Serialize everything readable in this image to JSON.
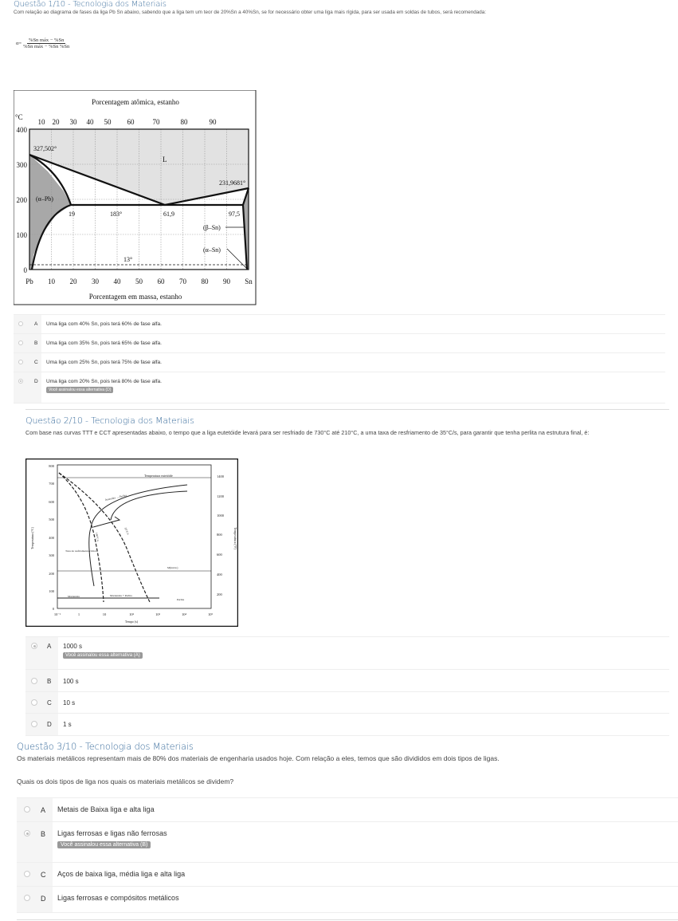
{
  "q1": {
    "title": "Questão 1/10 - Tecnologia dos Materiais",
    "text": "Com relação ao diagrama de fases da liga Pb Sn abaixo, sabendo que a liga tem um teor de 20%Sn a 40%Sn,  se for necessário obter uma liga mais rígida, para ser usada em soldas de tubos, será recomendada:",
    "formula": {
      "lhs": "α=",
      "num": "%Sn máx − %Sn",
      "den": "%Sn máx − %Sn %Sn"
    },
    "diagram": {
      "top_title": "Porcentagem atômica, estanho",
      "unit": "°C",
      "top_ticks": [
        "10",
        "20",
        "30",
        "40",
        "50",
        "60",
        "70",
        "80",
        "90"
      ],
      "y_ticks": [
        "400",
        "300",
        "200",
        "100",
        "0"
      ],
      "x_ticks": [
        "Pb",
        "10",
        "20",
        "30",
        "40",
        "50",
        "60",
        "70",
        "80",
        "90",
        "Sn"
      ],
      "x_title": "Porcentagem em massa, estanho",
      "labels": {
        "pb_melt": "327,502°",
        "L": "L",
        "sn_melt": "231,9681°",
        "alpha_pb": "(α–Pb)",
        "c19": "19",
        "t183": "183°",
        "c619": "61,9",
        "c975": "97,5",
        "beta_sn": "(β–Sn)",
        "alpha_sn": "(α–Sn)",
        "t13": "13°"
      }
    },
    "options": [
      {
        "letter": "A",
        "text": "Uma liga com 40% Sn, pois terá 60% de fase alfa.",
        "selected": false
      },
      {
        "letter": "B",
        "text": "Uma liga com 35% Sn, pois terá 65% de fase alfa.",
        "selected": false
      },
      {
        "letter": "C",
        "text": "Uma liga com 25% Sn, pois terá 75% de fase alfa.",
        "selected": false
      },
      {
        "letter": "D",
        "text": "Uma liga com 20% Sn, pois terá 80% de fase alfa.",
        "selected": true,
        "badge": "Você assinalou essa alternativa (D)"
      }
    ]
  },
  "q2": {
    "title": "Questão 2/10 - Tecnologia dos Materiais",
    "text": "Com base nas curvas TTT e CCT apresentadas abaixo, o tempo que a liga eutetóide levará para ser resfriado de 730°C até 210°C, a uma taxa de resfriamento de 35°C/s, para garantir que tenha perlita na estrutura final, é:",
    "diagram": {
      "y_ticks": [
        "800",
        "700",
        "600",
        "500",
        "400",
        "300",
        "200",
        "100",
        "0"
      ],
      "y2_ticks": [
        "1400",
        "1200",
        "1000",
        "800",
        "600",
        "400",
        "200"
      ],
      "x_ticks": [
        "10⁻¹",
        "1",
        "10",
        "10²",
        "10³",
        "10⁴",
        "10⁵"
      ],
      "y_title": "Temperatura (°C)",
      "y2_title": "Temperatura (°F)",
      "x_title": "Tempo (s)",
      "labels": {
        "eutectoid": "Temperatura eutetóide",
        "aus_perl": "Austenita → Perlita",
        "r140": "140°C/s",
        "r35": "35°C/s",
        "critical": "Taxa de resfriamento crítica",
        "ms": "M(início)",
        "martensita": "Martensita",
        "mart_perl": "Martensita + Perlita",
        "perlita": "Perlita"
      }
    },
    "options": [
      {
        "letter": "A",
        "text": "1000 s",
        "selected": true,
        "badge": "Você assinalou essa alternativa (A)"
      },
      {
        "letter": "B",
        "text": "100 s",
        "selected": false
      },
      {
        "letter": "C",
        "text": "10 s",
        "selected": false
      },
      {
        "letter": "D",
        "text": "1 s",
        "selected": false
      }
    ]
  },
  "q3": {
    "title": "Questão 3/10 - Tecnologia dos Materiais",
    "text": "Os materiais metálicos representam mais de 80% dos materiais de engenharia usados hoje. Com relação a eles, temos que são divididos em dois tipos de ligas.",
    "question": "Quais os dois tipos de liga nos quais os materiais metálicos se dividem?",
    "options": [
      {
        "letter": "A",
        "text": "Metais de Baixa liga e alta liga",
        "selected": false
      },
      {
        "letter": "B",
        "text": "Ligas ferrosas e ligas não ferrosas",
        "selected": true,
        "badge": "Você assinalou essa alternativa (B)"
      },
      {
        "letter": "C",
        "text": "Aços de baixa liga, média liga e alta liga",
        "selected": false
      },
      {
        "letter": "D",
        "text": "Ligas ferrosas e compósitos metálicos",
        "selected": false
      }
    ]
  }
}
